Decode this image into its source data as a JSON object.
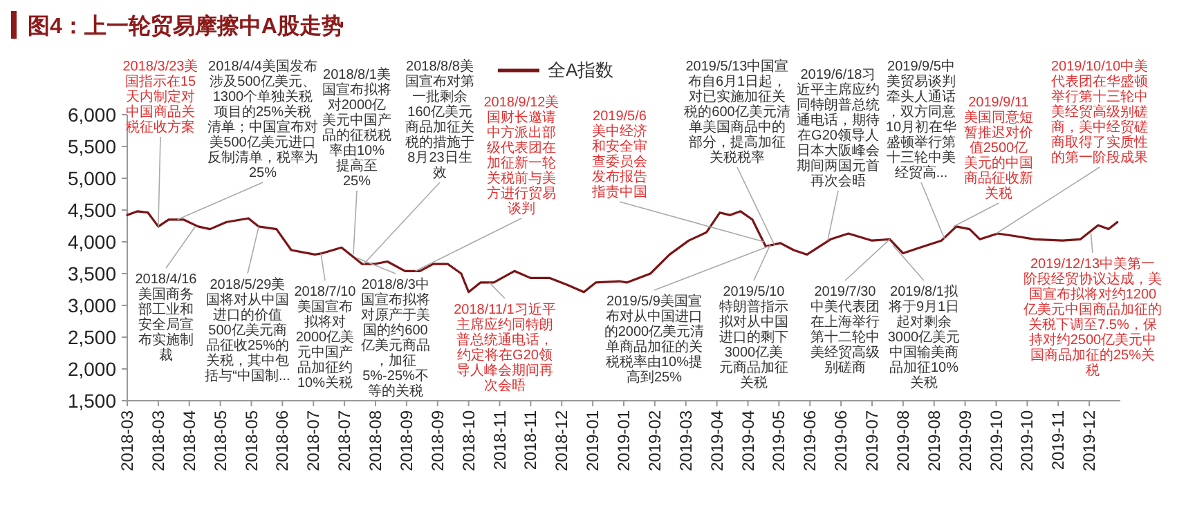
{
  "chart_data": {
    "type": "line",
    "title": "图4：上一轮贸易摩擦中A股走势",
    "legend": "top",
    "series": [
      {
        "name": "全A指数",
        "color": "#7b1416",
        "x": [
          "2018-03-01",
          "2018-03-08",
          "2018-03-15",
          "2018-03-22",
          "2018-03-29",
          "2018-04-08",
          "2018-04-18",
          "2018-04-26",
          "2018-05-07",
          "2018-05-22",
          "2018-05-29",
          "2018-06-10",
          "2018-06-20",
          "2018-07-06",
          "2018-07-11",
          "2018-07-24",
          "2018-07-30",
          "2018-08-07",
          "2018-08-15",
          "2018-08-24",
          "2018-09-05",
          "2018-09-15",
          "2018-09-24",
          "2018-10-04",
          "2018-10-13",
          "2018-10-18",
          "2018-10-26",
          "2018-11-04",
          "2018-11-18",
          "2018-11-29",
          "2018-12-12",
          "2018-12-24",
          "2019-01-04",
          "2019-01-12",
          "2019-01-28",
          "2019-02-02",
          "2019-02-18",
          "2019-03-03",
          "2019-03-16",
          "2019-03-28",
          "2019-04-06",
          "2019-04-13",
          "2019-04-20",
          "2019-04-28",
          "2019-05-07",
          "2019-05-17",
          "2019-05-26",
          "2019-06-04",
          "2019-06-20",
          "2019-07-02",
          "2019-07-18",
          "2019-07-30",
          "2019-08-08",
          "2019-08-22",
          "2019-09-03",
          "2019-09-13",
          "2019-09-22",
          "2019-09-29",
          "2019-10-11",
          "2019-10-23",
          "2019-11-05",
          "2019-11-24",
          "2019-12-06",
          "2019-12-18",
          "2019-12-25",
          "2019-12-31"
        ],
        "values": [
          4420,
          4480,
          4460,
          4240,
          4350,
          4350,
          4240,
          4200,
          4310,
          4370,
          4240,
          4200,
          3870,
          3800,
          3820,
          3910,
          3800,
          3650,
          3650,
          3690,
          3540,
          3540,
          3650,
          3650,
          3500,
          3210,
          3360,
          3360,
          3540,
          3430,
          3430,
          3320,
          3210,
          3360,
          3380,
          3360,
          3500,
          3800,
          4020,
          4150,
          4460,
          4420,
          4480,
          4350,
          3930,
          3980,
          3870,
          3800,
          4040,
          4130,
          4020,
          4040,
          3820,
          3930,
          4020,
          4240,
          4200,
          4040,
          4130,
          4090,
          4040,
          4020,
          4040,
          4260,
          4200,
          4310
        ]
      }
    ],
    "xlim": [
      "2018-03-01",
      "2020-01-02"
    ],
    "xticks": [
      {
        "value": "2018-03-01",
        "label": "2018-03"
      },
      {
        "value": "2018-03-22",
        "label": "2018-03"
      },
      {
        "value": "2018-04-12",
        "label": "2018-04"
      },
      {
        "value": "2018-05-03",
        "label": "2018-05"
      },
      {
        "value": "2018-05-24",
        "label": "2018-05"
      },
      {
        "value": "2018-06-14",
        "label": "2018-06"
      },
      {
        "value": "2018-07-05",
        "label": "2018-07"
      },
      {
        "value": "2018-07-26",
        "label": "2018-07"
      },
      {
        "value": "2018-08-16",
        "label": "2018-08"
      },
      {
        "value": "2018-09-06",
        "label": "2018-09"
      },
      {
        "value": "2018-09-27",
        "label": "2018-09"
      },
      {
        "value": "2018-10-18",
        "label": "2018-10"
      },
      {
        "value": "2018-11-08",
        "label": "2018-11"
      },
      {
        "value": "2018-11-29",
        "label": "2018-11"
      },
      {
        "value": "2018-12-20",
        "label": "2018-12"
      },
      {
        "value": "2019-01-10",
        "label": "2019-01"
      },
      {
        "value": "2019-01-31",
        "label": "2019-01"
      },
      {
        "value": "2019-02-21",
        "label": "2019-02"
      },
      {
        "value": "2019-03-14",
        "label": "2019-03"
      },
      {
        "value": "2019-04-04",
        "label": "2019-04"
      },
      {
        "value": "2019-04-25",
        "label": "2019-04"
      },
      {
        "value": "2019-05-16",
        "label": "2019-05"
      },
      {
        "value": "2019-06-06",
        "label": "2019-06"
      },
      {
        "value": "2019-06-27",
        "label": "2019-06"
      },
      {
        "value": "2019-07-18",
        "label": "2019-07"
      },
      {
        "value": "2019-08-08",
        "label": "2019-08"
      },
      {
        "value": "2019-08-29",
        "label": "2019-08"
      },
      {
        "value": "2019-09-19",
        "label": "2019-09"
      },
      {
        "value": "2019-10-10",
        "label": "2019-10"
      },
      {
        "value": "2019-10-31",
        "label": "2019-10"
      },
      {
        "value": "2019-11-21",
        "label": "2019-11"
      },
      {
        "value": "2019-12-12",
        "label": "2019-12"
      }
    ],
    "ylim": [
      1500,
      6000
    ],
    "yticks": [
      {
        "value": 1500,
        "label": "1,500"
      },
      {
        "value": 2000,
        "label": "2,000"
      },
      {
        "value": 2500,
        "label": "2,500"
      },
      {
        "value": 3000,
        "label": "3,000"
      },
      {
        "value": 3500,
        "label": "3,500"
      },
      {
        "value": 4000,
        "label": "4,000"
      },
      {
        "value": 4500,
        "label": "4,500"
      },
      {
        "value": 5000,
        "label": "5,000"
      },
      {
        "value": 5500,
        "label": "5,500"
      },
      {
        "value": 6000,
        "label": "6,000"
      }
    ],
    "annotations": [
      {
        "text": "2018/3/23美国指示在15天内制定对中国商品关税征收方案",
        "x": "2018-03-22",
        "y": 4240
      },
      {
        "text": "2018/4/4美国发布涉及500亿美元、1300个单独关税项目的25%关税清单；中国宣布对美500亿美元进口反制清单，税率为25%",
        "x": "2018-04-04",
        "y": 4350
      },
      {
        "text": "2018/8/1美国宣布拟将对2000亿美元中国产品的征税税率由10%提高至25%",
        "x": "2018-08-01",
        "y": 3800
      },
      {
        "text": "2018/8/8美国宣布对第一批剩余160亿美元商品加征关税的措施于8月23日生效",
        "x": "2018-08-08",
        "y": 3650
      },
      {
        "text": "2018/9/12美国财长邀请中方派出部级代表团在加征新一轮关税前与美方进行贸易谈判",
        "x": "2018-09-12",
        "y": 3540
      },
      {
        "text": "2019/5/6美中经济和安全审查委员会发布报告指责中国",
        "x": "2019-05-06",
        "y": 4000
      },
      {
        "text": "2019/5/13中国宣布自6月1日起，对已实施加征关税的600亿美元清单美国商品中的部分，提高加征关税税率",
        "x": "2019-05-13",
        "y": 3950
      },
      {
        "text": "2019/6/18习近平主席应约同特朗普总统通电话，期待在G20领导人日本大阪峰会期间两国元首再次会晤",
        "x": "2019-06-18",
        "y": 4020
      },
      {
        "text": "2019/9/5中美贸易谈判牵头人通话，双方同意10月初在华盛顿举行第十三轮中美经贸高...",
        "x": "2019-09-05",
        "y": 4050
      },
      {
        "text": "2019/9/11美国同意短暂推迟对价值2500亿美元的中国商品征收新关税",
        "x": "2019-09-11",
        "y": 4240
      },
      {
        "text": "2019/10/10中美代表团在华盛顿举行第十三轮中美经贸高级别磋商，美中经贸磋商取得了实质性的第一阶段成果",
        "x": "2019-10-10",
        "y": 4130
      },
      {
        "text": "2018/4/16美国商务部工业和安全局宣布实施制裁",
        "x": "2018-04-16",
        "y": 4240
      },
      {
        "text": "2018/5/29美国将对从中国进口的价值500亿美元商品征收25%的关税，其中包括与“中国制...",
        "x": "2018-05-29",
        "y": 4240
      },
      {
        "text": "2018/7/10美国宣布拟将对2000亿美元中国产品加征约10%关税",
        "x": "2018-07-10",
        "y": 3820
      },
      {
        "text": "2018/8/3中国宣布拟将对原产于美国的约600亿美元商品，加征5%-25%不等的关税",
        "x": "2018-08-03",
        "y": 3750
      },
      {
        "text": "2018/11/1习近平主席应约同特朗普总统通电话，约定将在G20领导人峰会期间再次会晤",
        "x": "2018-11-01",
        "y": 3360
      },
      {
        "text": "2019/5/9美国宣布对从中国进口的2000亿美元清单商品加征的关税税率由10%提高到25%",
        "x": "2019-05-09",
        "y": 3930
      },
      {
        "text": "2019/5/10特朗普指示拟对从中国进口的剩下3000亿美元商品加征关税",
        "x": "2019-05-10",
        "y": 3950
      },
      {
        "text": "2019/7/30中美代表团在上海举行第十二轮中美经贸高级别磋商",
        "x": "2019-07-30",
        "y": 4040
      },
      {
        "text": "2019/8/1拟将于9月1日起对剩余3000亿美元中国输美商品加征10%关税",
        "x": "2019-08-01",
        "y": 3950
      },
      {
        "text": "2019/12/13中美第一阶段经贸协议达成，美国宣布拟将对约1200亿美元中国商品加征的关税下调至7.5%，保持对约2500亿美元中国商品加征的25%关税",
        "x": "2019-12-13",
        "y": 4150
      }
    ]
  }
}
